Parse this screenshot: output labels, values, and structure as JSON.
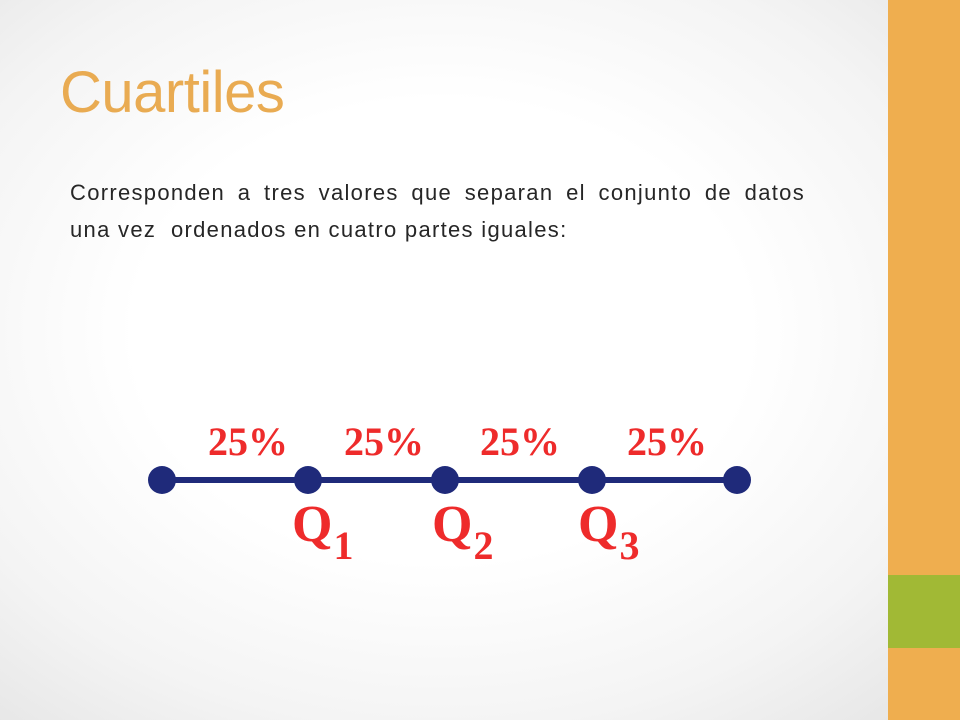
{
  "slide": {
    "title": "Cuartiles",
    "body": {
      "lines": [
        "Corresponden a tres valores que separan el conjunto de datos",
        "una vez  ordenados en cuatro partes iguales:"
      ]
    }
  },
  "diagram": {
    "segments": [
      {
        "label": "25%"
      },
      {
        "label": "25%"
      },
      {
        "label": "25%"
      },
      {
        "label": "25%"
      }
    ],
    "quartiles": [
      {
        "letter": "Q",
        "index": "1"
      },
      {
        "letter": "Q",
        "index": "2"
      },
      {
        "letter": "Q",
        "index": "3"
      }
    ]
  },
  "colors": {
    "title": "#E9AB52",
    "text": "#262626",
    "orange": "#EFAE4F",
    "green": "#A1B935",
    "line": "#1F2A7A",
    "label": "#EE2B2B"
  }
}
